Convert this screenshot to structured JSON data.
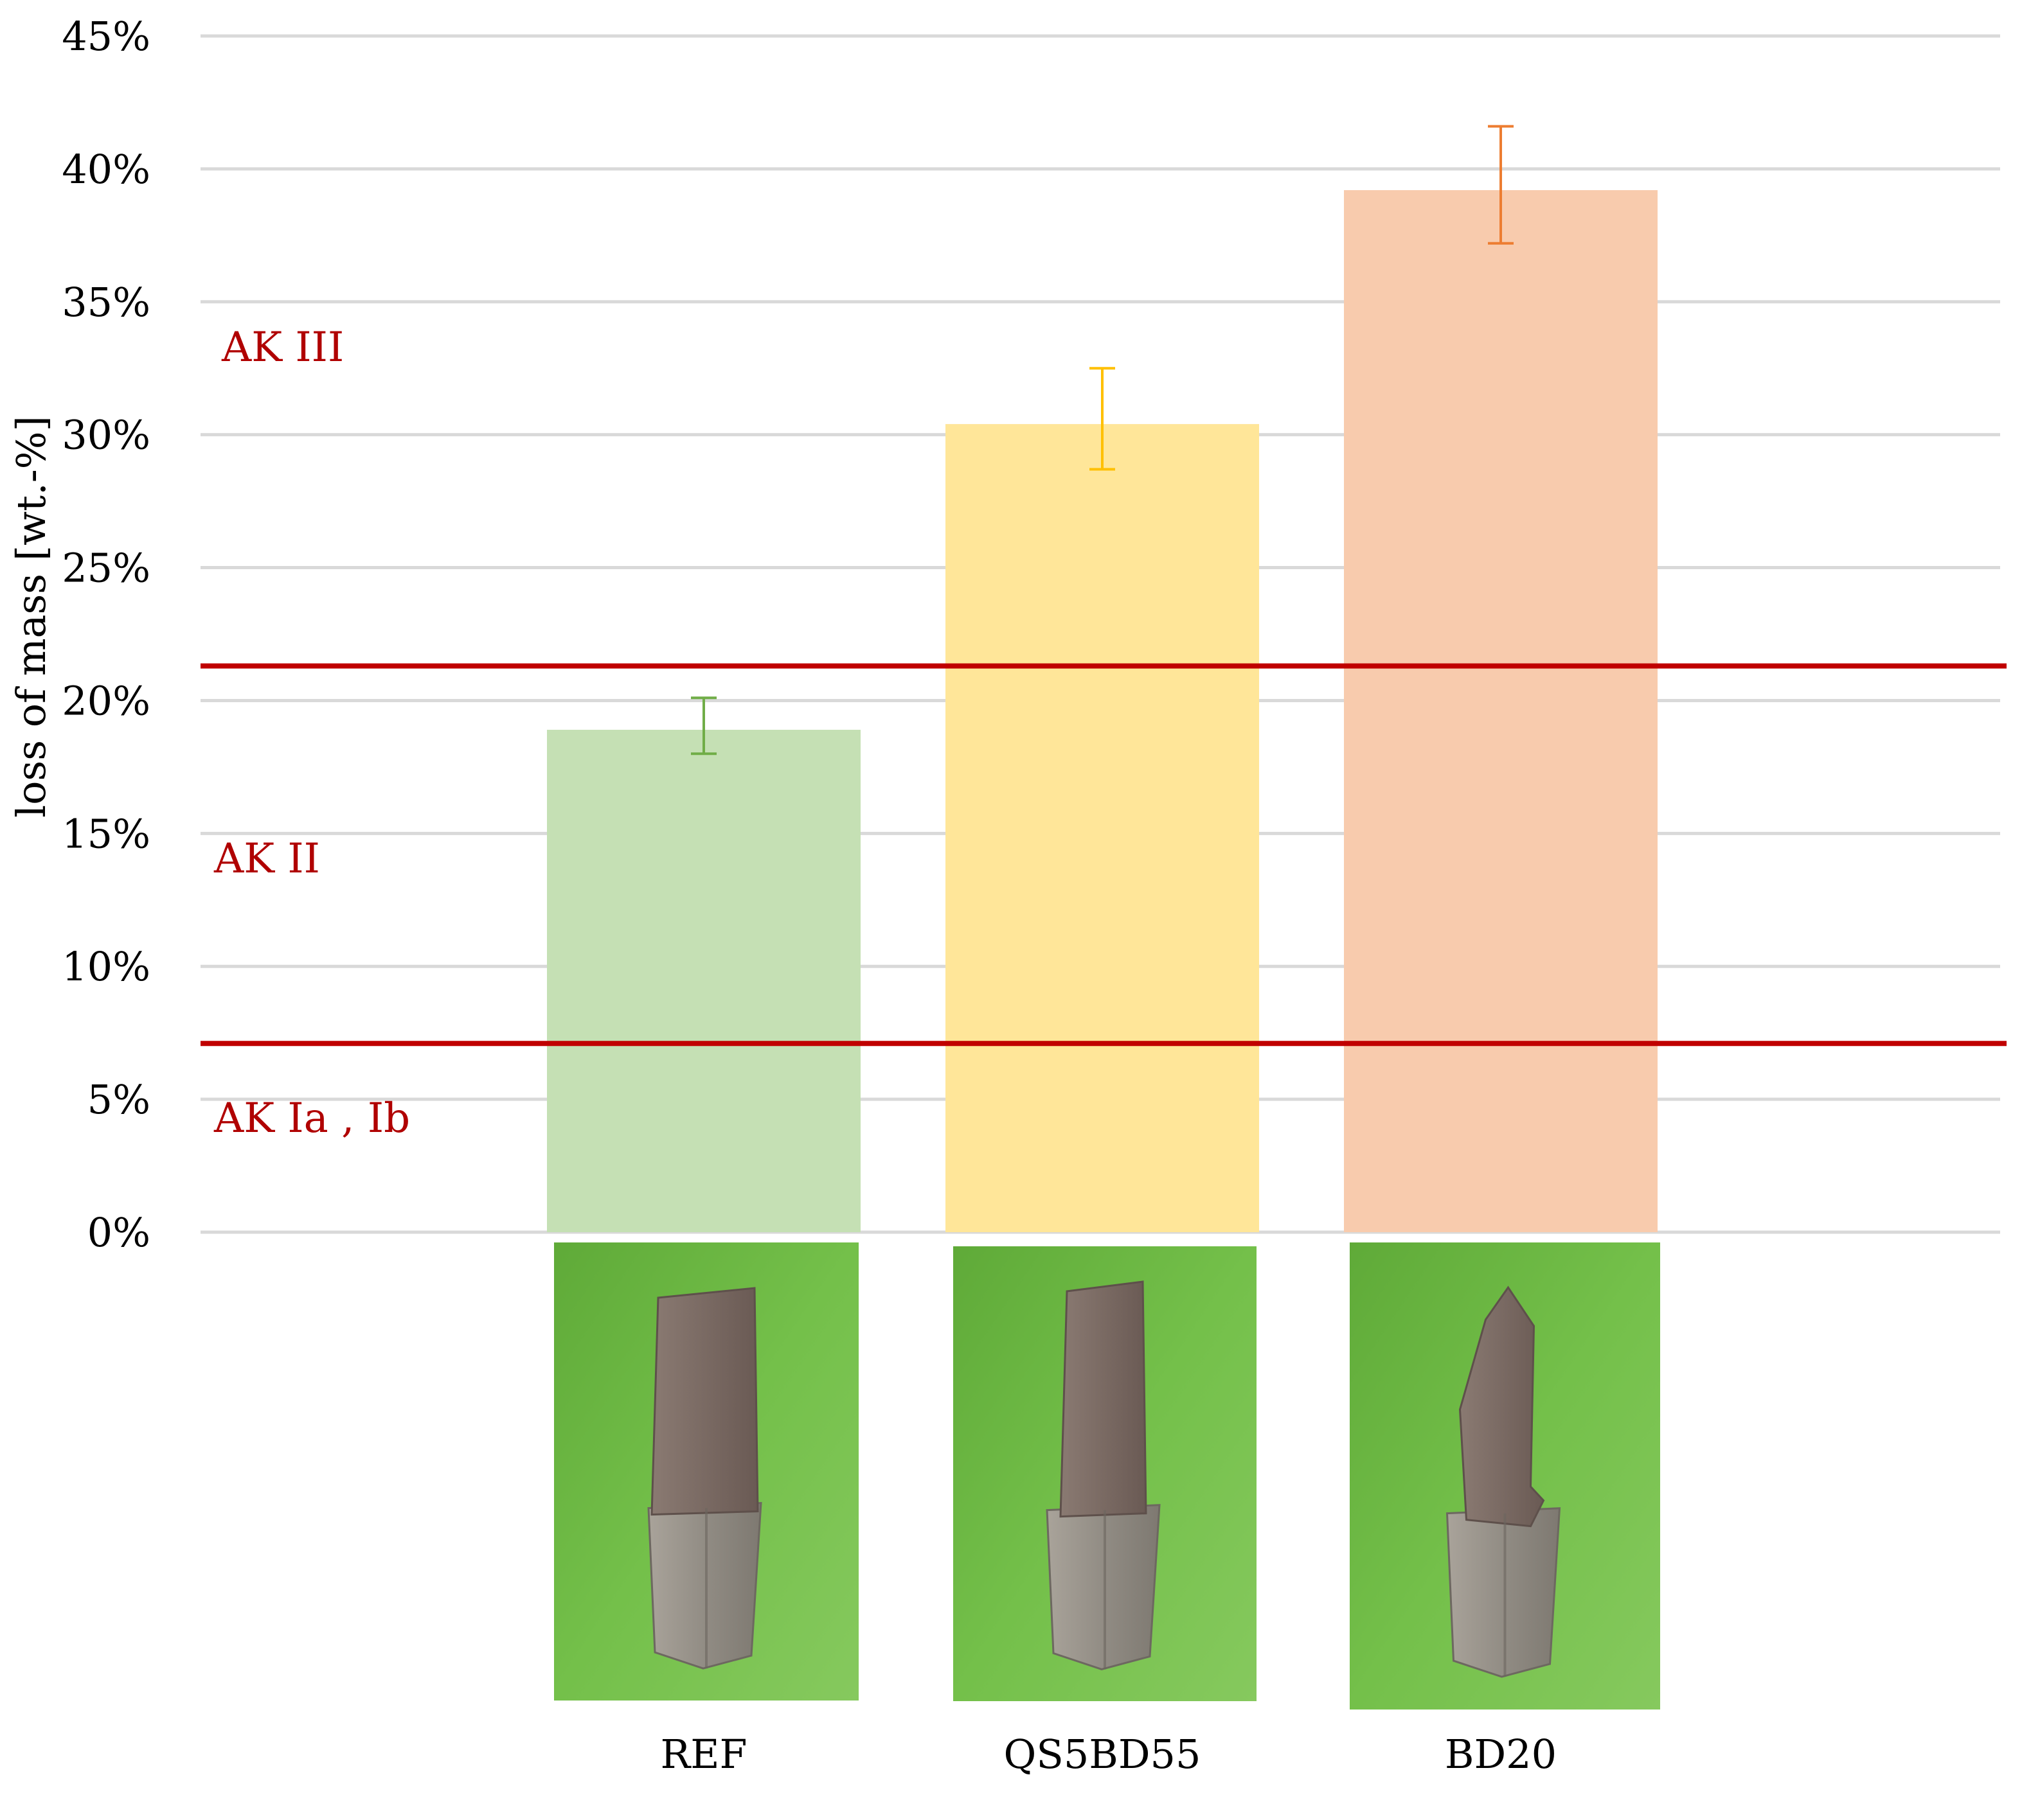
{
  "chart_data": {
    "type": "bar",
    "ylabel": "loss of mass [wt.-%]",
    "ylim": [
      0,
      45
    ],
    "y_ticks": [
      "0%",
      "5%",
      "10%",
      "15%",
      "20%",
      "25%",
      "30%",
      "35%",
      "40%",
      "45%"
    ],
    "categories": [
      "REF",
      "QS5BD55",
      "BD20"
    ],
    "values": [
      18.9,
      30.4,
      39.2
    ],
    "error_low": [
      18.0,
      28.7,
      37.2
    ],
    "error_high": [
      20.1,
      32.5,
      41.6
    ],
    "colors": [
      "#c5e0b4",
      "#ffe699",
      "#f8cbad"
    ],
    "error_colors": [
      "#70ad47",
      "#ffc000",
      "#ed7d31"
    ],
    "gridlines": true,
    "thresholds": [
      {
        "value": 21.3,
        "color": "#c00000"
      },
      {
        "value": 7.1,
        "color": "#c00000"
      }
    ],
    "zone_labels": [
      "AK III",
      "AK II",
      "AK Ia , Ib"
    ],
    "photos": [
      "specimen photo REF",
      "specimen photo QS5BD55",
      "specimen photo BD20"
    ]
  }
}
